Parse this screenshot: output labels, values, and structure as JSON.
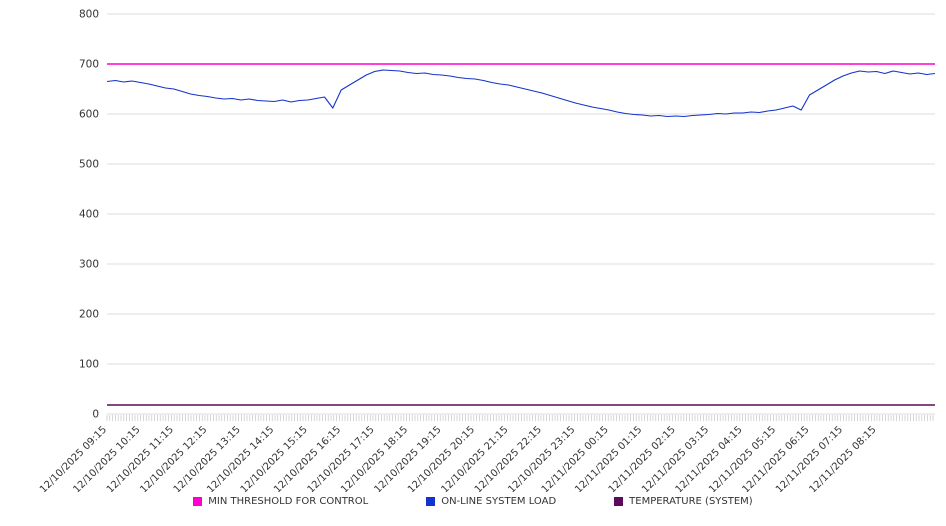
{
  "chart_data": {
    "type": "line",
    "title": "",
    "xlabel": "",
    "ylabel": "",
    "ylim": [
      0,
      800
    ],
    "y_ticks": [
      0,
      100,
      200,
      300,
      400,
      500,
      600,
      700,
      800
    ],
    "grid": "horizontal",
    "legend_position": "bottom",
    "x_labels": [
      "12/10/2025 09:15",
      "12/10/2025 10:15",
      "12/10/2025 11:15",
      "12/10/2025 12:15",
      "12/10/2025 13:15",
      "12/10/2025 14:15",
      "12/10/2025 15:15",
      "12/10/2025 16:15",
      "12/10/2025 17:15",
      "12/10/2025 18:15",
      "12/10/2025 19:15",
      "12/10/2025 20:15",
      "12/10/2025 21:15",
      "12/10/2025 22:15",
      "12/10/2025 23:15",
      "12/11/2025 00:15",
      "12/11/2025 01:15",
      "12/11/2025 02:15",
      "12/11/2025 03:15",
      "12/11/2025 04:15",
      "12/11/2025 05:15",
      "12/11/2025 06:15",
      "12/11/2025 07:15",
      "12/11/2025 08:15"
    ],
    "points_per_label": 4,
    "series": [
      {
        "name": "MIN THRESHOLD FOR CONTROL",
        "color": "#ff00cc",
        "style": "constant",
        "value": 700,
        "stroke_width": 1.6
      },
      {
        "name": "ON-LINE SYSTEM LOAD",
        "color": "#1233cc",
        "style": "line",
        "stroke_width": 1.1,
        "values": [
          665,
          667,
          664,
          666,
          663,
          660,
          656,
          652,
          650,
          645,
          640,
          637,
          635,
          632,
          630,
          631,
          628,
          630,
          627,
          626,
          625,
          628,
          624,
          627,
          628,
          631,
          634,
          612,
          648,
          658,
          668,
          678,
          685,
          688,
          687,
          686,
          683,
          681,
          682,
          679,
          678,
          676,
          673,
          671,
          670,
          667,
          663,
          660,
          658,
          654,
          650,
          646,
          642,
          637,
          632,
          627,
          622,
          618,
          614,
          611,
          608,
          604,
          601,
          599,
          598,
          596,
          597,
          595,
          596,
          595,
          597,
          598,
          599,
          601,
          600,
          602,
          602,
          604,
          603,
          606,
          608,
          612,
          616,
          608,
          638,
          648,
          658,
          668,
          676,
          682,
          686,
          684,
          685,
          681,
          686,
          683,
          680,
          682,
          679,
          681
        ]
      },
      {
        "name": "TEMPERATURE (SYSTEM)",
        "color": "#5c0a5c",
        "style": "constant",
        "value": 18,
        "stroke_width": 1.4
      }
    ]
  }
}
